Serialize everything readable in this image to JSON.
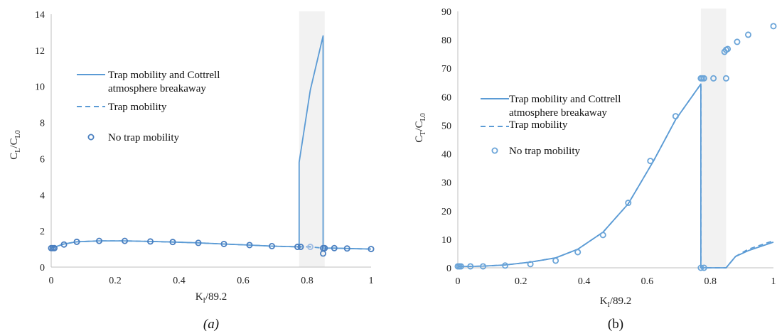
{
  "colors": {
    "line": "#5b9bd5",
    "marker": "#4a7fc0",
    "marker_light": "#9fbbe3",
    "band": "#f2f2f2"
  },
  "chart_data": [
    {
      "type": "line",
      "panel_caption": "(a)",
      "xlabel_main": "K",
      "xlabel_sub": "I",
      "xlabel_rest": "/89.2",
      "ylabel_main": "C",
      "ylabel_sub1": "L",
      "ylabel_mid": "/C",
      "ylabel_sub2": "L0",
      "xlim": [
        0,
        1
      ],
      "ylim": [
        0,
        14
      ],
      "xticks": [
        0,
        0.2,
        0.4,
        0.6,
        0.8,
        1
      ],
      "xtick_labels": [
        "0",
        "0.2",
        "0.4",
        "0.6",
        "0.8",
        "1"
      ],
      "yticks": [
        0,
        2,
        4,
        6,
        8,
        10,
        12,
        14
      ],
      "ytick_labels": [
        "0",
        "2",
        "4",
        "6",
        "8",
        "10",
        "12",
        "14"
      ],
      "shaded_band": [
        0.775,
        0.855
      ],
      "legend_labels": [
        "Trap mobility and Cottrell",
        "atmosphere breakaway",
        "Trap mobility",
        "No trap mobility"
      ],
      "series": [
        {
          "name": "Trap mobility and Cottrell atmosphere breakaway",
          "style": "solid",
          "x": [
            0,
            0.04,
            0.08,
            0.15,
            0.23,
            0.31,
            0.38,
            0.46,
            0.54,
            0.62,
            0.69,
            0.775,
            0.775,
            0.81,
            0.85,
            0.85,
            0.885,
            0.925,
            1.0
          ],
          "y": [
            1.05,
            1.28,
            1.4,
            1.45,
            1.45,
            1.42,
            1.39,
            1.34,
            1.28,
            1.22,
            1.16,
            1.12,
            5.8,
            9.8,
            12.8,
            1.05,
            1.05,
            1.03,
            1.0
          ]
        },
        {
          "name": "Trap mobility",
          "style": "dashed",
          "x": [
            0,
            0.04,
            0.08,
            0.15,
            0.23,
            0.31,
            0.38,
            0.46,
            0.54,
            0.62,
            0.69,
            0.775,
            0.81,
            0.85,
            0.885,
            0.925,
            1.0
          ],
          "y": [
            1.05,
            1.28,
            1.4,
            1.45,
            1.45,
            1.42,
            1.39,
            1.34,
            1.28,
            1.22,
            1.16,
            1.12,
            1.12,
            1.05,
            1.05,
            1.03,
            1.0
          ]
        },
        {
          "name": "No trap mobility",
          "style": "markers",
          "x": [
            0,
            0.005,
            0.01,
            0.04,
            0.08,
            0.15,
            0.23,
            0.31,
            0.38,
            0.46,
            0.54,
            0.62,
            0.69,
            0.77,
            0.78,
            0.81,
            0.85,
            0.85,
            0.855,
            0.885,
            0.925,
            1.0
          ],
          "y": [
            1.05,
            1.05,
            1.05,
            1.25,
            1.4,
            1.45,
            1.45,
            1.42,
            1.39,
            1.34,
            1.28,
            1.22,
            1.16,
            1.12,
            1.12,
            1.12,
            1.05,
            0.75,
            1.05,
            1.05,
            1.03,
            1.0
          ]
        }
      ]
    },
    {
      "type": "line",
      "panel_caption": "(b)",
      "xlabel_main": "K",
      "xlabel_sub": "I",
      "xlabel_rest": "/89.2",
      "ylabel_main": "C",
      "ylabel_sub1": "T",
      "ylabel_mid": "/C",
      "ylabel_sub2": "L0",
      "xlim": [
        0,
        1
      ],
      "ylim": [
        0,
        90
      ],
      "xticks": [
        0,
        0.2,
        0.4,
        0.6,
        0.8,
        1
      ],
      "xtick_labels": [
        "0",
        "0.2",
        "0.4",
        "0.6",
        "0.8",
        "1"
      ],
      "yticks": [
        0,
        10,
        20,
        30,
        40,
        50,
        60,
        70,
        80,
        90
      ],
      "ytick_labels": [
        "0",
        "10",
        "20",
        "30",
        "40",
        "50",
        "60",
        "70",
        "80",
        "90"
      ],
      "shaded_band": [
        0.77,
        0.85
      ],
      "legend_labels": [
        "Trap mobility and Cottrell",
        "atmosphere breakaway",
        "Trap mobility",
        "No trap mobility"
      ],
      "series": [
        {
          "name": "Trap mobility and Cottrell atmosphere breakaway",
          "style": "solid",
          "x": [
            0,
            0.04,
            0.08,
            0.15,
            0.23,
            0.31,
            0.38,
            0.46,
            0.54,
            0.62,
            0.69,
            0.77,
            0.77,
            0.81,
            0.85,
            0.88,
            0.92,
            1.0
          ],
          "y": [
            0.5,
            0.5,
            0.6,
            1.0,
            2.0,
            3.5,
            6.5,
            12.5,
            22.5,
            37.5,
            52,
            64.5,
            0,
            0,
            0,
            4,
            6,
            9
          ]
        },
        {
          "name": "Trap mobility",
          "style": "dashed",
          "x": [
            0,
            0.04,
            0.08,
            0.15,
            0.23,
            0.31,
            0.38,
            0.46,
            0.54,
            0.62,
            0.69,
            0.77,
            0.77,
            0.81,
            0.85,
            0.88,
            0.92,
            1.0
          ],
          "y": [
            0.5,
            0.5,
            0.6,
            1.0,
            2.0,
            3.5,
            6.5,
            12.5,
            22.5,
            37.5,
            52,
            64.5,
            0,
            0,
            0,
            4,
            6.5,
            9.5
          ]
        },
        {
          "name": "No trap mobility",
          "style": "markers",
          "x": [
            0,
            0.005,
            0.01,
            0.04,
            0.08,
            0.15,
            0.23,
            0.31,
            0.38,
            0.46,
            0.54,
            0.61,
            0.69,
            0.77,
            0.775,
            0.78,
            0.81,
            0.85,
            0.845,
            0.85,
            0.855,
            0.885,
            0.92,
            1.0,
            0.77,
            0.78
          ],
          "y": [
            0.5,
            0.5,
            0.5,
            0.5,
            0.5,
            0.8,
            1.3,
            2.5,
            5.5,
            11.5,
            22.8,
            37.5,
            53.2,
            66.5,
            66.5,
            66.5,
            66.5,
            66.5,
            75.8,
            76.5,
            76.8,
            79.3,
            81.8,
            84.8,
            0,
            0
          ]
        }
      ]
    }
  ]
}
